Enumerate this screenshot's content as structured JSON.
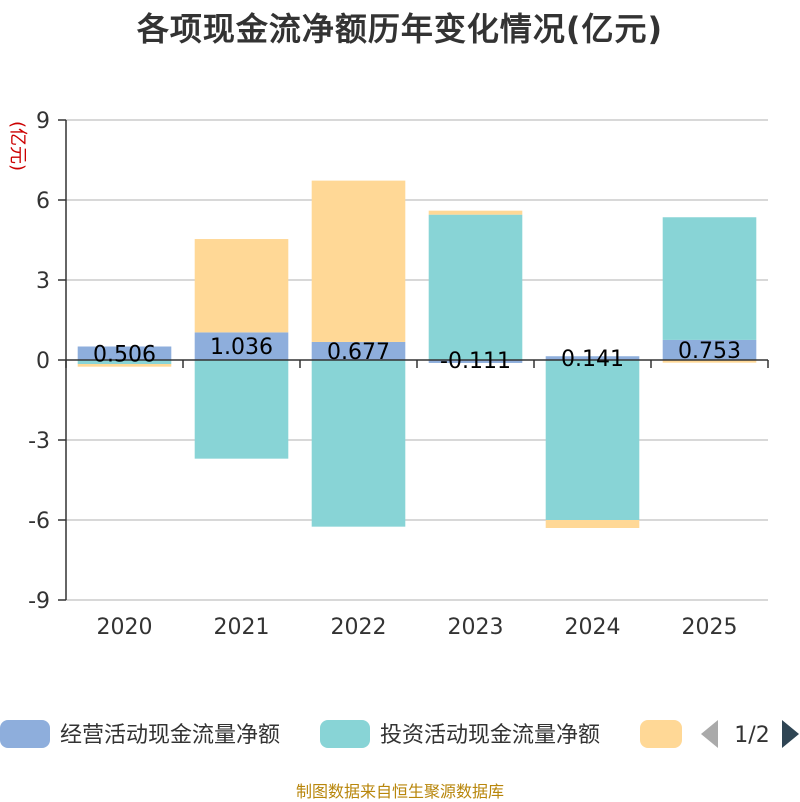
{
  "chart_data": {
    "type": "bar",
    "stacked": true,
    "title": "各项现金流净额历年变化情况(亿元)",
    "ylabel": "(亿元)",
    "xlabel": "",
    "categories": [
      "2020",
      "2021",
      "2022",
      "2023",
      "2024",
      "2025"
    ],
    "ylim": [
      -9,
      9
    ],
    "yticks": [
      9,
      6,
      3,
      0,
      -3,
      -6,
      -9
    ],
    "grid": true,
    "legend_position": "bottom",
    "series": [
      {
        "name": "经营活动现金流量净额",
        "color": "#8eaedc",
        "values": [
          0.506,
          1.036,
          0.677,
          -0.111,
          0.141,
          0.753
        ],
        "data_labels": [
          "0.506",
          "1.036",
          "0.677",
          "-0.111",
          "0.141",
          "0.753"
        ]
      },
      {
        "name": "投资活动现金流量净额",
        "color": "#88d4d6",
        "values": [
          -0.15,
          -3.7,
          -6.25,
          5.45,
          -6.0,
          4.6
        ]
      },
      {
        "name": "",
        "color": "#ffd896",
        "values": [
          -0.1,
          3.5,
          6.05,
          0.15,
          -0.3,
          -0.1
        ]
      }
    ]
  },
  "legend": {
    "pager_text": "1/2",
    "prev_icon": "triangle-left-icon",
    "next_icon": "triangle-right-icon"
  },
  "source": "制图数据来自恒生聚源数据库"
}
